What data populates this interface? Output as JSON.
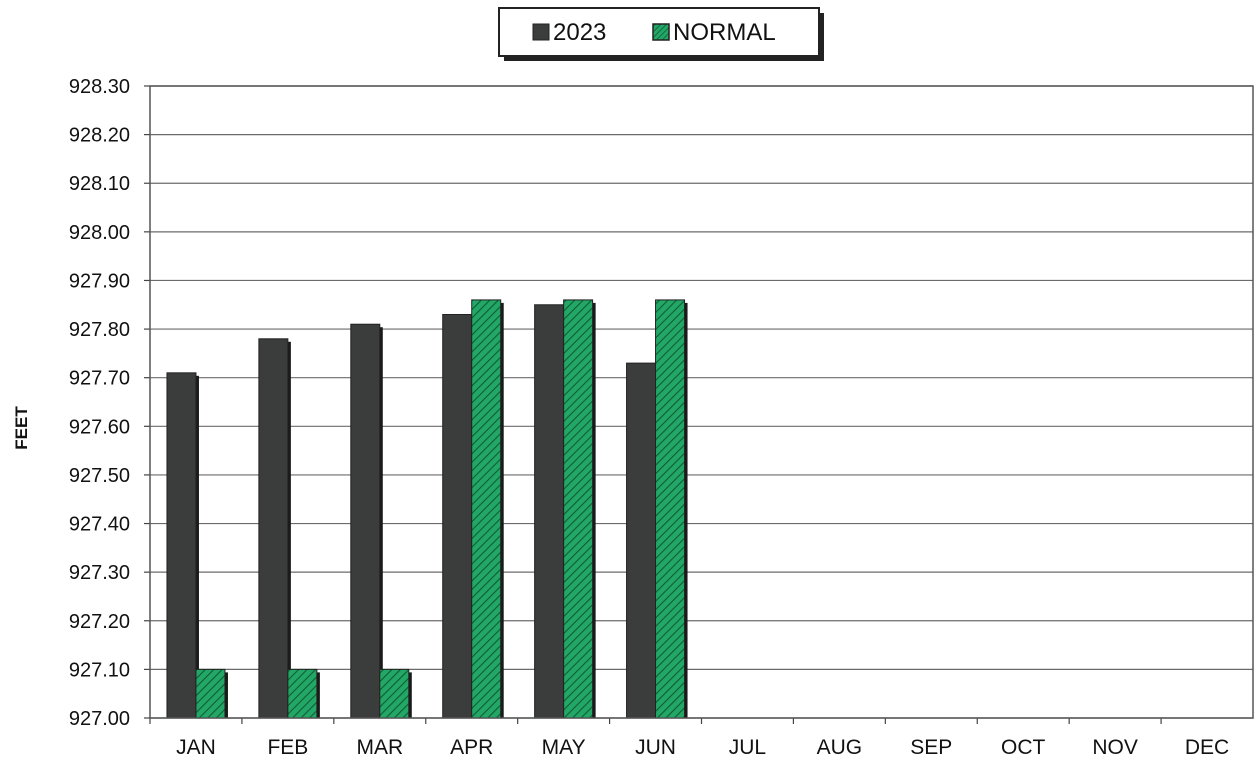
{
  "chart_data": {
    "type": "bar",
    "title": "",
    "ylabel": "FEET",
    "xlabel": "",
    "categories": [
      "JAN",
      "FEB",
      "MAR",
      "APR",
      "MAY",
      "JUN",
      "JUL",
      "AUG",
      "SEP",
      "OCT",
      "NOV",
      "DEC"
    ],
    "series": [
      {
        "name": "2023",
        "color": "#3a3d3b",
        "values": [
          927.71,
          927.78,
          927.81,
          927.83,
          927.85,
          927.73,
          null,
          null,
          null,
          null,
          null,
          null
        ]
      },
      {
        "name": "NORMAL",
        "color": "#1f9a5f",
        "values": [
          927.1,
          927.1,
          927.1,
          927.86,
          927.86,
          927.86,
          null,
          null,
          null,
          null,
          null,
          null
        ]
      }
    ],
    "ylim": [
      927.0,
      928.3
    ],
    "yticks": [
      "928.30",
      "928.20",
      "928.10",
      "928.00",
      "927.90",
      "927.80",
      "927.70",
      "927.60",
      "927.50",
      "927.40",
      "927.30",
      "927.20",
      "927.10",
      "927.00"
    ],
    "grid": true,
    "legend_position": "top-center"
  }
}
